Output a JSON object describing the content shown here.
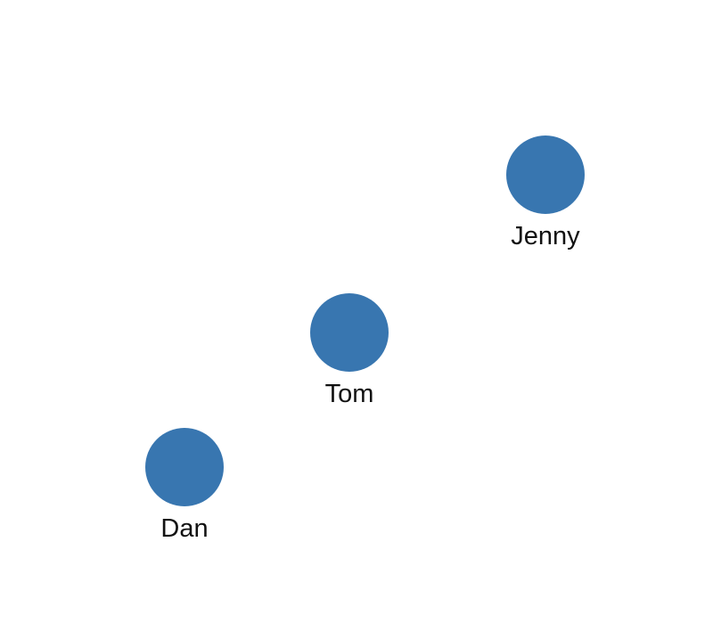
{
  "nodes": [
    {
      "id": "jenny",
      "label": "Jenny"
    },
    {
      "id": "tom",
      "label": "Tom"
    },
    {
      "id": "dan",
      "label": "Dan"
    }
  ],
  "colors": {
    "node_fill": "#3876b0",
    "label_text": "#111111",
    "background": "#ffffff"
  }
}
